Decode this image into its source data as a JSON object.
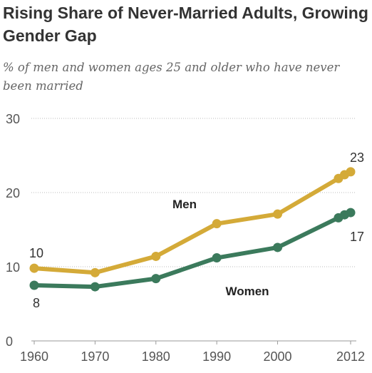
{
  "chart_data": {
    "type": "line",
    "title": "Rising Share of Never-Married Adults, Growing Gender Gap",
    "subtitle": "% of men and women ages 25 and older who have never been married",
    "x": [
      1960,
      1970,
      1980,
      1990,
      2000,
      2010,
      2011,
      2012
    ],
    "x_ticks": [
      "1960",
      "1970",
      "1980",
      "1990",
      "2000",
      "2012"
    ],
    "x_tick_values": [
      1960,
      1970,
      1980,
      1990,
      2000,
      2012
    ],
    "y_ticks": [
      "0",
      "10",
      "20",
      "30"
    ],
    "y_tick_values": [
      0,
      10,
      20,
      30
    ],
    "ylim": [
      0,
      30
    ],
    "grid": true,
    "series": [
      {
        "name": "Men",
        "color": "#d4aa38",
        "values": [
          9.8,
          9.2,
          11.4,
          15.8,
          17.1,
          21.9,
          22.4,
          22.8
        ],
        "start_label": "10",
        "end_label": "23"
      },
      {
        "name": "Women",
        "color": "#3b7a5c",
        "values": [
          7.5,
          7.3,
          8.4,
          11.2,
          12.6,
          16.6,
          17.0,
          17.3
        ],
        "start_label": "8",
        "end_label": "17"
      }
    ]
  }
}
